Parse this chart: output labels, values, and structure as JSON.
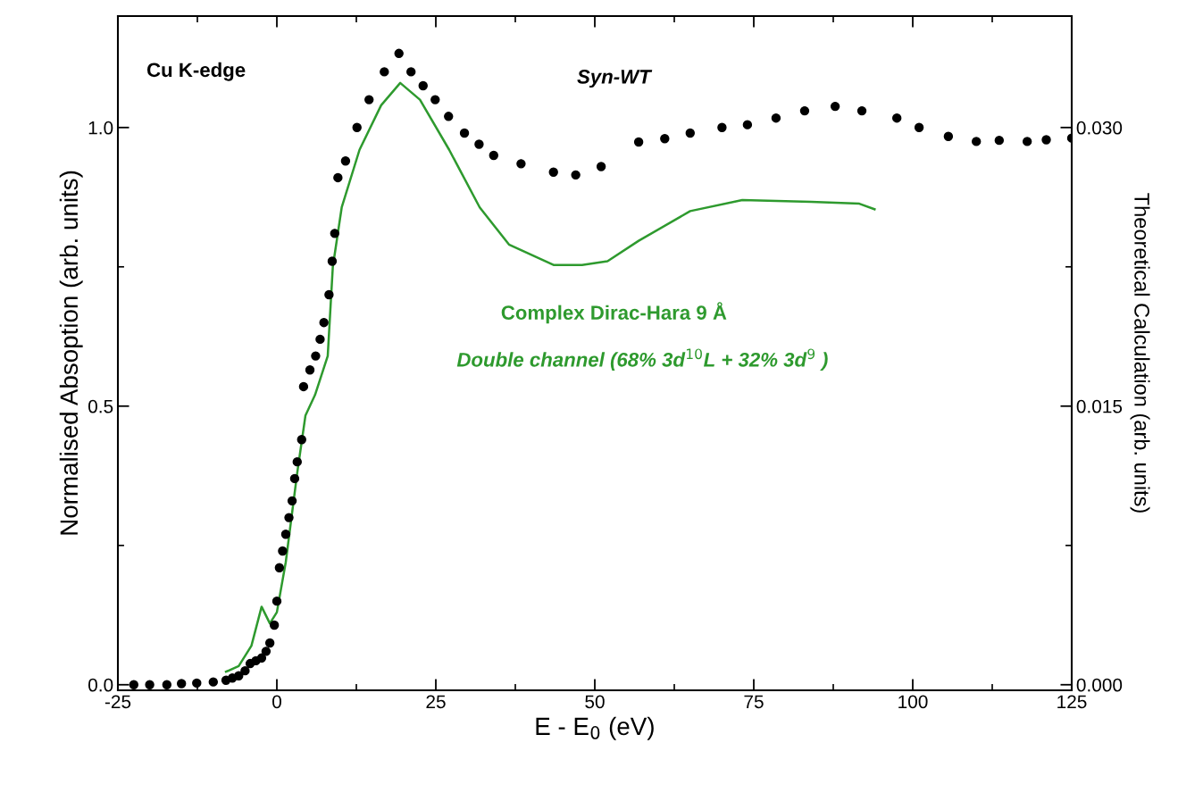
{
  "chart_data": {
    "type": "scatter",
    "xlabel": "E - E$_{0}$ (eV)",
    "ylabel": "Normalised Absoption (arb. units)",
    "y2label": "Theoretical Calculation (arb. units)",
    "xlim": [
      -25,
      125
    ],
    "xticks": [
      -25,
      0,
      25,
      50,
      75,
      100,
      125
    ],
    "ylim": [
      -0.01,
      1.2
    ],
    "yticks": [
      {
        "value": 0,
        "label": "0.0"
      },
      {
        "value": 0.5,
        "label": "0.5"
      },
      {
        "value": 1,
        "label": "1.0"
      }
    ],
    "y2lim": [
      -0.0003,
      0.036
    ],
    "y2ticks": [
      {
        "value": 0,
        "label": "0.000"
      },
      {
        "value": 0.015,
        "label": "0.015"
      },
      {
        "value": 0.03,
        "label": "0.030"
      }
    ],
    "grid": false,
    "legend": "top",
    "annotations": [
      "Cu K-edge",
      "Double channel (68% 3d$^{10}$L + 32% 3d$^{9}$ )"
    ],
    "series": [
      {
        "name": "Syn-WT",
        "marker": "circle",
        "color": "#000000",
        "x": [
          -22.5,
          -20,
          -17.3,
          -15,
          -12.6,
          -10,
          -8,
          -7,
          -6,
          -5,
          -4.2,
          -3.3,
          -2.4,
          -1.7,
          -1.1,
          -0.4,
          0,
          0.4,
          0.9,
          1.4,
          1.9,
          2.4,
          2.8,
          3.2,
          3.9,
          4.2,
          5.2,
          6.1,
          6.8,
          7.4,
          8.2,
          8.7,
          9.1,
          9.6,
          10.8,
          12.6,
          14.5,
          16.9,
          19.2,
          21.1,
          23,
          24.9,
          27,
          29.5,
          31.8,
          34.1,
          38.4,
          43.5,
          47,
          51,
          56.9,
          61,
          65,
          70,
          74,
          78.5,
          83,
          87.8,
          92,
          97.5,
          101,
          105.6,
          110,
          113.6,
          118,
          121,
          125
        ],
        "values": [
          0.0,
          0.0,
          0.0,
          0.002,
          0.003,
          0.005,
          0.008,
          0.012,
          0.016,
          0.025,
          0.038,
          0.043,
          0.048,
          0.06,
          0.075,
          0.107,
          0.15,
          0.21,
          0.24,
          0.27,
          0.3,
          0.33,
          0.37,
          0.4,
          0.44,
          0.535,
          0.565,
          0.59,
          0.62,
          0.65,
          0.7,
          0.76,
          0.81,
          0.91,
          0.94,
          1.0,
          1.05,
          1.1,
          1.133,
          1.1,
          1.075,
          1.05,
          1.02,
          0.99,
          0.97,
          0.95,
          0.935,
          0.92,
          0.915,
          0.93,
          0.974,
          0.98,
          0.99,
          1.0,
          1.005,
          1.017,
          1.03,
          1.038,
          1.03,
          1.017,
          1.0,
          0.984,
          0.975,
          0.977,
          0.975,
          0.978,
          0.981
        ]
      },
      {
        "name": "Complex Dirac-Hara 9 Å",
        "type": "line",
        "axis": "y2",
        "color": "#2e9a2e",
        "x": [
          -8,
          -6,
          -4,
          -2.4,
          -1.1,
          0,
          1.4,
          3.2,
          4.5,
          6,
          8,
          8.8,
          10.2,
          13,
          16.4,
          19.4,
          22.5,
          27.1,
          31.9,
          36.5,
          43.5,
          48,
          52,
          56.9,
          65,
          73.2,
          84,
          91.6,
          94
        ],
        "values": [
          0.0007,
          0.001,
          0.0021,
          0.0042,
          0.0033,
          0.0039,
          0.0066,
          0.0114,
          0.0145,
          0.0156,
          0.0177,
          0.0225,
          0.0257,
          0.0288,
          0.0312,
          0.0324,
          0.0315,
          0.0288,
          0.0257,
          0.0237,
          0.0226,
          0.0226,
          0.0228,
          0.0239,
          0.0255,
          0.0261,
          0.026,
          0.0259,
          0.0256
        ]
      }
    ]
  }
}
